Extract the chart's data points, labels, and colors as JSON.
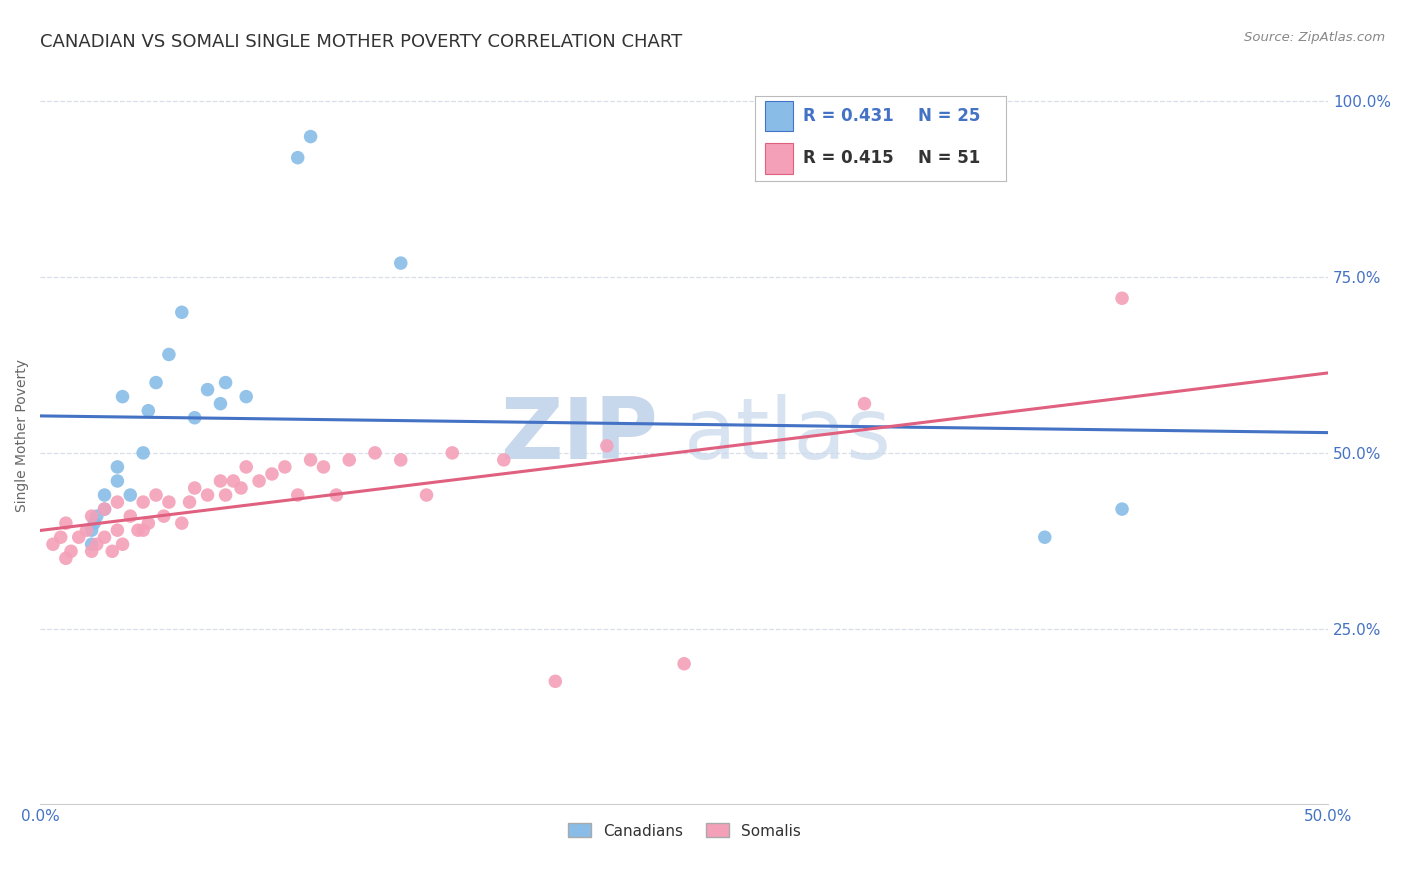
{
  "title": "CANADIAN VS SOMALI SINGLE MOTHER POVERTY CORRELATION CHART",
  "source_text": "Source: ZipAtlas.com",
  "ylabel": "Single Mother Poverty",
  "xlim": [
    0.0,
    0.5
  ],
  "ylim": [
    0.0,
    1.05
  ],
  "xticks": [
    0.0,
    0.1,
    0.2,
    0.3,
    0.4,
    0.5
  ],
  "xtick_labels": [
    "0.0%",
    "",
    "",
    "",
    "",
    "50.0%"
  ],
  "yticks": [
    0.25,
    0.5,
    0.75,
    1.0
  ],
  "ytick_labels": [
    "25.0%",
    "50.0%",
    "75.0%",
    "100.0%"
  ],
  "ytick_color": "#4472c4",
  "xtick_color": "#4472c4",
  "legend_r_canadian": "R = 0.431",
  "legend_n_canadian": "N = 25",
  "legend_r_somali": "R = 0.415",
  "legend_n_somali": "N = 51",
  "canadian_color": "#89bde8",
  "somali_color": "#f4a0b8",
  "canadian_line_color": "#4472c4",
  "somali_line_color": "#e06080",
  "watermark_zip": "ZIP",
  "watermark_atlas": "atlas",
  "watermark_color": "#c8d8ec",
  "background_color": "#ffffff",
  "title_fontsize": 13,
  "canadian_x": [
    0.02,
    0.02,
    0.021,
    0.022,
    0.025,
    0.025,
    0.03,
    0.03,
    0.032,
    0.035,
    0.04,
    0.042,
    0.045,
    0.05,
    0.055,
    0.06,
    0.065,
    0.07,
    0.072,
    0.08,
    0.1,
    0.105,
    0.14,
    0.39,
    0.42
  ],
  "canadian_y": [
    0.37,
    0.39,
    0.4,
    0.41,
    0.42,
    0.44,
    0.46,
    0.48,
    0.58,
    0.44,
    0.5,
    0.56,
    0.6,
    0.64,
    0.7,
    0.55,
    0.59,
    0.57,
    0.6,
    0.58,
    0.92,
    0.95,
    0.77,
    0.38,
    0.42
  ],
  "somali_x": [
    0.005,
    0.008,
    0.01,
    0.01,
    0.012,
    0.015,
    0.018,
    0.02,
    0.02,
    0.022,
    0.025,
    0.025,
    0.028,
    0.03,
    0.03,
    0.032,
    0.035,
    0.038,
    0.04,
    0.04,
    0.042,
    0.045,
    0.048,
    0.05,
    0.055,
    0.058,
    0.06,
    0.065,
    0.07,
    0.072,
    0.075,
    0.078,
    0.08,
    0.085,
    0.09,
    0.095,
    0.1,
    0.105,
    0.11,
    0.115,
    0.12,
    0.13,
    0.14,
    0.15,
    0.16,
    0.18,
    0.2,
    0.22,
    0.25,
    0.32,
    0.42
  ],
  "somali_y": [
    0.37,
    0.38,
    0.35,
    0.4,
    0.36,
    0.38,
    0.39,
    0.36,
    0.41,
    0.37,
    0.38,
    0.42,
    0.36,
    0.39,
    0.43,
    0.37,
    0.41,
    0.39,
    0.39,
    0.43,
    0.4,
    0.44,
    0.41,
    0.43,
    0.4,
    0.43,
    0.45,
    0.44,
    0.46,
    0.44,
    0.46,
    0.45,
    0.48,
    0.46,
    0.47,
    0.48,
    0.44,
    0.49,
    0.48,
    0.44,
    0.49,
    0.5,
    0.49,
    0.44,
    0.5,
    0.49,
    0.175,
    0.51,
    0.2,
    0.57,
    0.72
  ],
  "grid_color": "#d8dfe8",
  "marker_size": 95
}
